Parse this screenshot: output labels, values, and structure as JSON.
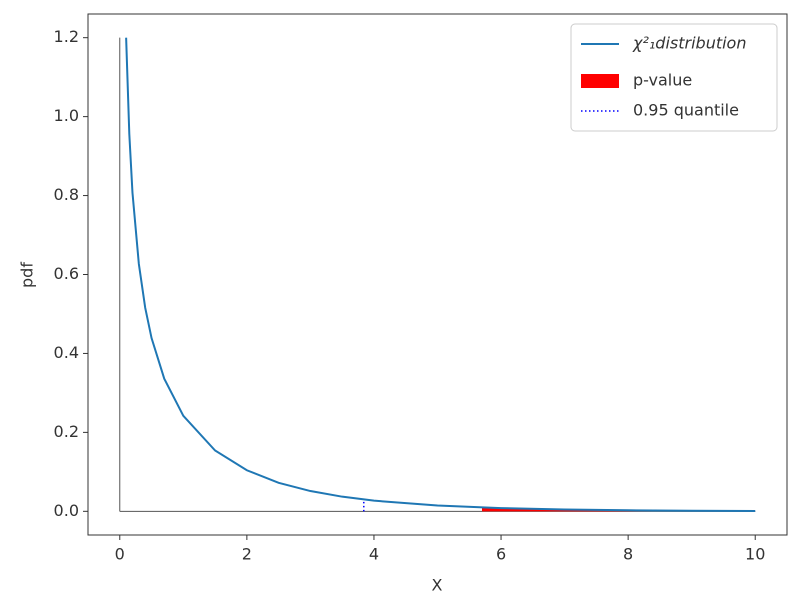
{
  "chart_data": {
    "type": "line",
    "xlabel": "X",
    "ylabel": "pdf",
    "xlim": [
      -0.5,
      10.5
    ],
    "ylim": [
      -0.06,
      1.26
    ],
    "xticks": [
      0,
      2,
      4,
      6,
      8,
      10
    ],
    "yticks": [
      {
        "value": 0,
        "label": "0.0"
      },
      0.2,
      0.4,
      0.6,
      0.8,
      {
        "value": 1,
        "label": "1.0"
      },
      1.2
    ],
    "legend": "upper right",
    "series": [
      {
        "name": "χ²₁distribution",
        "color": "#1f77b4",
        "x": [
          0.1,
          0.15,
          0.2,
          0.3,
          0.4,
          0.5,
          0.7,
          1,
          1.5,
          2,
          2.5,
          3,
          3.5,
          4,
          5,
          6,
          7,
          8,
          9,
          10
        ],
        "values": [
          1.2,
          0.956,
          0.807,
          0.627,
          0.516,
          0.439,
          0.336,
          0.242,
          0.154,
          0.104,
          0.0723,
          0.0514,
          0.0371,
          0.027,
          0.0146,
          0.0081,
          0.0046,
          0.0026,
          0.0015,
          0.00085
        ]
      }
    ],
    "fill": {
      "name": "p-value",
      "color": "#ff0000",
      "x": [
        5.7,
        6,
        7,
        8,
        9,
        10
      ],
      "values": [
        0.0097,
        0.0081,
        0.0046,
        0.0026,
        0.0015,
        0.00085
      ]
    },
    "quantile": {
      "name": "0.95 quantile",
      "color": "#0000ff",
      "x": 3.84,
      "ymax": 0.0298
    },
    "vline": {
      "x": 0,
      "ymax": 1.2,
      "color": "#555555"
    },
    "hline": {
      "y": 0,
      "xmax": 10,
      "color": "#555555"
    }
  }
}
